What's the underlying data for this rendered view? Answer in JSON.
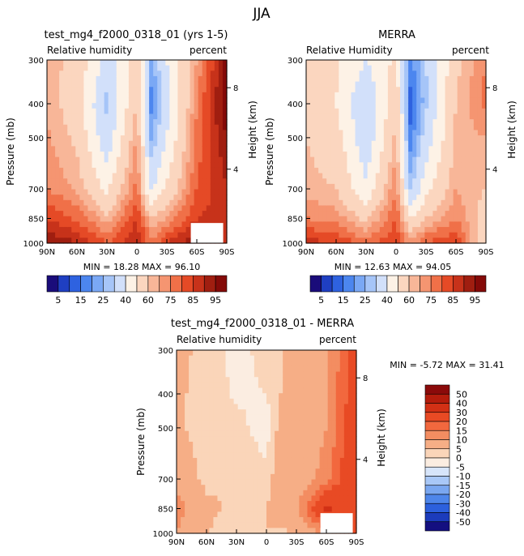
{
  "page_title": "JJA",
  "panels": [
    {
      "title": "test_mg4_f2000_0318_01 (yrs 1-5)",
      "left_label": "Relative humidity",
      "right_label": "percent",
      "stats": "MIN =   18.28   MAX =   96.10",
      "ylabel": "Pressure (mb)",
      "y2label": "Height (km)"
    },
    {
      "title": "MERRA",
      "left_label": "Relative Humidity",
      "right_label": "percent",
      "stats": "MIN =   12.63   MAX =   94.05",
      "ylabel": "Pressure (mb)",
      "y2label": "Height (km)"
    },
    {
      "title": "test_mg4_f2000_0318_01 - MERRA",
      "left_label": "Relative humidity",
      "right_label": "percent",
      "stats": "MIN =   -5.72   MAX =   31.41",
      "ylabel": "Pressure (mb)",
      "y2label": "Height (km)"
    }
  ],
  "chart_data": [
    {
      "type": "heatmap",
      "title": "test_mg4_f2000_0318_01 (yrs 1-5)",
      "subtitle_left": "Relative humidity",
      "subtitle_right": "percent",
      "x_ticks": [
        "90N",
        "60N",
        "30N",
        "0",
        "30S",
        "60S",
        "90S"
      ],
      "y_ticks": [
        300,
        400,
        500,
        700,
        850,
        1000
      ],
      "y2_ticks": [
        8,
        4
      ],
      "ylabel": "Pressure (mb)",
      "y2label": "Height (km)",
      "min": 18.28,
      "max": 96.1,
      "colorbar_labels": [
        "5",
        "15",
        "25",
        "40",
        "60",
        "75",
        "85",
        "95"
      ],
      "field": [
        {
          "lat": "90N",
          "profile": [
            62,
            64,
            66,
            70,
            80,
            90
          ]
        },
        {
          "lat": "60N",
          "profile": [
            58,
            55,
            58,
            64,
            74,
            85
          ]
        },
        {
          "lat": "30N",
          "profile": [
            35,
            28,
            33,
            48,
            62,
            75
          ]
        },
        {
          "lat": "0",
          "profile": [
            55,
            60,
            66,
            72,
            80,
            85
          ]
        },
        {
          "lat": "15S",
          "profile": [
            22,
            18,
            24,
            38,
            60,
            72
          ]
        },
        {
          "lat": "30S",
          "profile": [
            40,
            35,
            40,
            52,
            66,
            80
          ]
        },
        {
          "lat": "60S",
          "profile": [
            65,
            70,
            72,
            75,
            80,
            90
          ]
        },
        {
          "lat": "90S",
          "profile": [
            92,
            95,
            90,
            85,
            82,
            80
          ]
        }
      ]
    },
    {
      "type": "heatmap",
      "title": "MERRA",
      "subtitle_left": "Relative Humidity",
      "subtitle_right": "percent",
      "x_ticks": [
        "90N",
        "60N",
        "30N",
        "0",
        "30S",
        "60S",
        "90S"
      ],
      "y_ticks": [
        300,
        400,
        500,
        700,
        850,
        1000
      ],
      "y2_ticks": [
        8,
        4
      ],
      "ylabel": "Pressure (mb)",
      "y2label": "Height (km)",
      "min": 12.63,
      "max": 94.05,
      "colorbar_labels": [
        "5",
        "15",
        "25",
        "40",
        "60",
        "75",
        "85",
        "95"
      ],
      "field": [
        {
          "lat": "90N",
          "profile": [
            55,
            58,
            60,
            62,
            70,
            82
          ]
        },
        {
          "lat": "60N",
          "profile": [
            52,
            50,
            55,
            60,
            68,
            80
          ]
        },
        {
          "lat": "30N",
          "profile": [
            40,
            30,
            32,
            42,
            58,
            72
          ]
        },
        {
          "lat": "0",
          "profile": [
            52,
            58,
            62,
            70,
            75,
            80
          ]
        },
        {
          "lat": "15S",
          "profile": [
            18,
            13,
            16,
            28,
            50,
            68
          ]
        },
        {
          "lat": "30S",
          "profile": [
            30,
            28,
            34,
            46,
            60,
            75
          ]
        },
        {
          "lat": "60S",
          "profile": [
            58,
            60,
            62,
            65,
            70,
            80
          ]
        },
        {
          "lat": "90S",
          "profile": [
            70,
            72,
            65,
            60,
            55,
            50
          ]
        }
      ]
    },
    {
      "type": "heatmap",
      "title": "test_mg4_f2000_0318_01 - MERRA",
      "subtitle_left": "Relative humidity",
      "subtitle_right": "percent",
      "x_ticks": [
        "90N",
        "60N",
        "30N",
        "0",
        "30S",
        "60S",
        "90S"
      ],
      "y_ticks": [
        300,
        400,
        500,
        700,
        850,
        1000
      ],
      "y2_ticks": [
        8,
        4
      ],
      "ylabel": "Pressure (mb)",
      "y2label": "Height (km)",
      "min": -5.72,
      "max": 31.41,
      "colorbar_labels": [
        "50",
        "40",
        "30",
        "20",
        "15",
        "10",
        "5",
        "0",
        "-5",
        "-10",
        "-15",
        "-20",
        "-30",
        "-40",
        "-50"
      ],
      "field": [
        {
          "lat": "90N",
          "profile": [
            6,
            6,
            6,
            8,
            12,
            10
          ]
        },
        {
          "lat": "60N",
          "profile": [
            4,
            3,
            3,
            4,
            6,
            5
          ]
        },
        {
          "lat": "30N",
          "profile": [
            -2,
            -1,
            2,
            5,
            4,
            3
          ]
        },
        {
          "lat": "0",
          "profile": [
            2,
            0,
            -3,
            2,
            5,
            5
          ]
        },
        {
          "lat": "15S",
          "profile": [
            4,
            5,
            8,
            10,
            10,
            4
          ]
        },
        {
          "lat": "30S",
          "profile": [
            10,
            8,
            6,
            6,
            8,
            5
          ]
        },
        {
          "lat": "60S",
          "profile": [
            8,
            10,
            10,
            12,
            31,
            10
          ]
        },
        {
          "lat": "90S",
          "profile": [
            25,
            24,
            28,
            28,
            28,
            30
          ]
        }
      ]
    }
  ],
  "palettes": {
    "rh": [
      "#1a0c7a",
      "#1f3fc2",
      "#2e62e0",
      "#4c86ef",
      "#7aa8f5",
      "#a6c5f8",
      "#d2e0fa",
      "#fdf2e6",
      "#fbd6bf",
      "#f8b698",
      "#f59571",
      "#f07048",
      "#e54a26",
      "#c7321a",
      "#a01e10",
      "#840a08"
    ],
    "diff": [
      "#8b0a0a",
      "#b41c0c",
      "#d23015",
      "#e84a24",
      "#f2683e",
      "#f38d61",
      "#f6ae86",
      "#fad5b9",
      "#fbede1",
      "#d7e5fa",
      "#a9c8f7",
      "#7aa7f0",
      "#4e86ea",
      "#2c60dd",
      "#1c3cbc",
      "#140f80"
    ]
  }
}
